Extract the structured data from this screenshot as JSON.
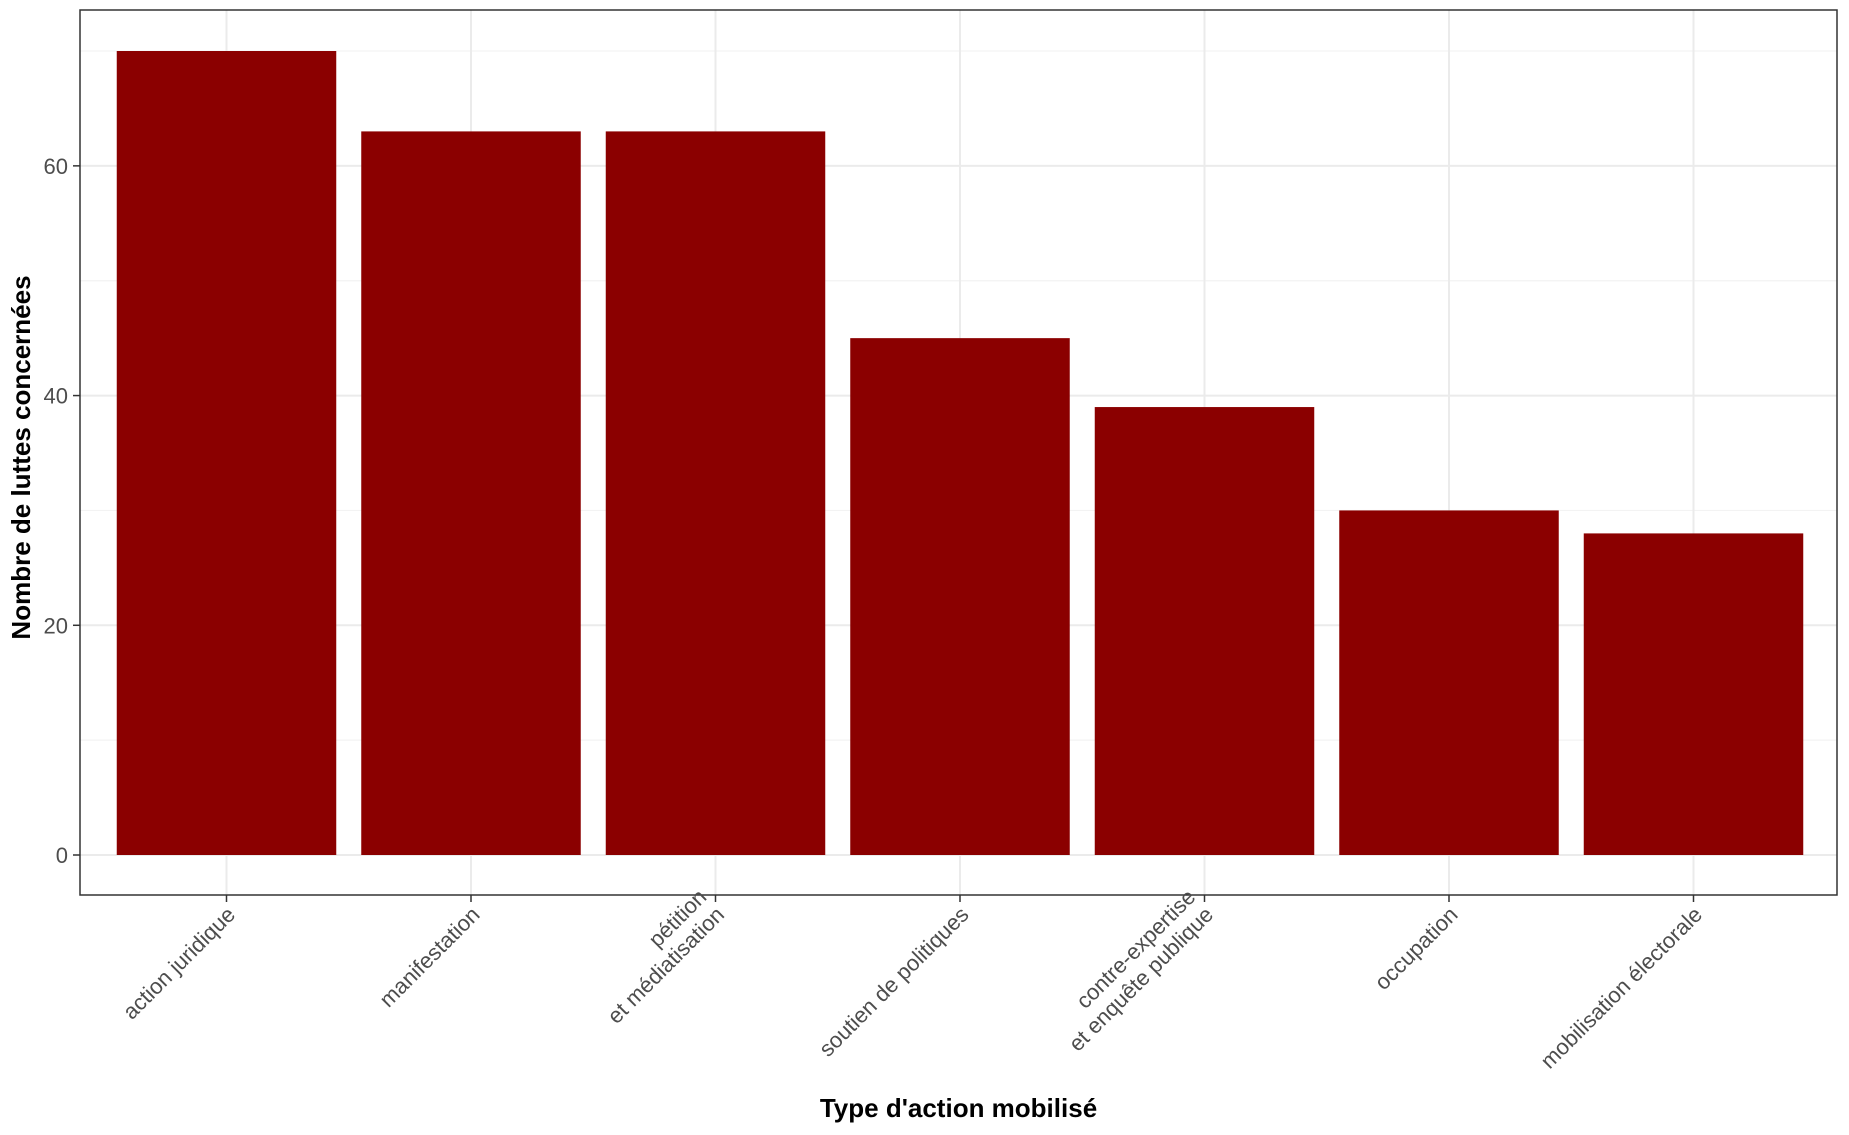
{
  "chart_data": {
    "type": "bar",
    "title": "",
    "xlabel": "Type d'action mobilisé",
    "ylabel": "Nombre de luttes concernées",
    "categories": [
      [
        "action juridique"
      ],
      [
        "manifestation"
      ],
      [
        "pétition",
        "et médiatisation"
      ],
      [
        "soutien de politiques"
      ],
      [
        "contre-expertise",
        "et enquête publique"
      ],
      [
        "occupation"
      ],
      [
        "mobilisation électorale"
      ]
    ],
    "values": [
      70,
      63,
      63,
      45,
      39,
      30,
      28
    ],
    "ylim": [
      0,
      73.5
    ],
    "yticks": [
      0,
      20,
      40,
      60
    ],
    "ytick_labels": [
      "0",
      "20",
      "40",
      "60"
    ],
    "grid": true,
    "legend": "none",
    "colors": {
      "bar": "#8b0000",
      "grid_major": "#ebebeb",
      "grid_minor": "#f3f3f3",
      "panel_border": "#333333",
      "tick_text": "#4d4d4d"
    }
  }
}
